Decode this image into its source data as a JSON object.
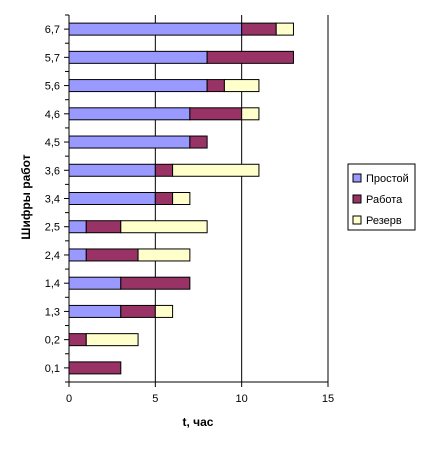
{
  "chart_data": {
    "type": "bar",
    "orientation": "horizontal",
    "stacked": true,
    "title": "",
    "xlabel": "t, час",
    "ylabel": "Шифры работ",
    "xlim": [
      0,
      15
    ],
    "x_ticks": [
      "0",
      "5",
      "10",
      "15"
    ],
    "grid": "vertical major gridlines",
    "legend_position": "right",
    "categories": [
      "0,1",
      "0,2",
      "1,3",
      "1,4",
      "2,4",
      "2,5",
      "3,4",
      "3,6",
      "4,5",
      "4,6",
      "5,6",
      "5,7",
      "6,7"
    ],
    "series": [
      {
        "name": "Простой",
        "color": "#9999FF",
        "values": [
          0,
          0,
          3,
          3,
          1,
          1,
          5,
          5,
          7,
          7,
          8,
          8,
          10
        ]
      },
      {
        "name": "Работа",
        "color": "#993366",
        "values": [
          3,
          1,
          2,
          4,
          3,
          2,
          1,
          1,
          1,
          3,
          1,
          5,
          2
        ]
      },
      {
        "name": "Резерв",
        "color": "#FFFFCC",
        "values": [
          0,
          3,
          1,
          0,
          3,
          5,
          1,
          5,
          0,
          1,
          2,
          0,
          1
        ]
      }
    ]
  }
}
